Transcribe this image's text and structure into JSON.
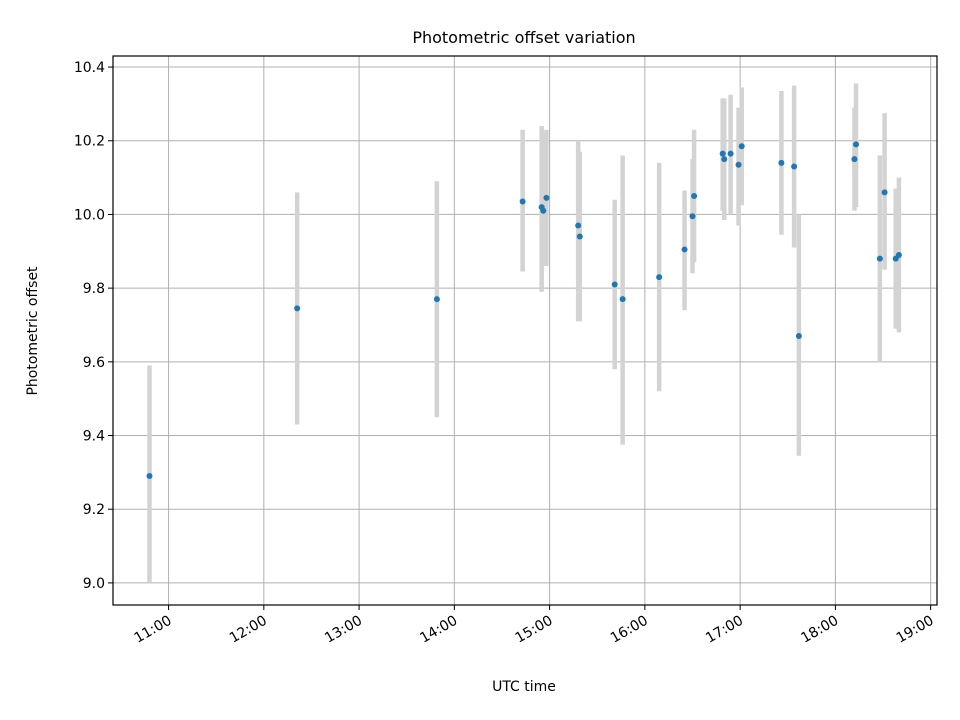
{
  "chart_data": {
    "type": "scatter",
    "title": "Photometric offset variation",
    "xlabel": "UTC time",
    "ylabel": "Photometric offset",
    "xlim": [
      "10:25",
      "19:04"
    ],
    "ylim": [
      8.94,
      10.43
    ],
    "grid": true,
    "x_ticks": [
      "11:00",
      "12:00",
      "13:00",
      "14:00",
      "15:00",
      "16:00",
      "17:00",
      "18:00",
      "19:00"
    ],
    "y_ticks": [
      "9.0",
      "9.2",
      "9.4",
      "9.6",
      "9.8",
      "10.0",
      "10.2",
      "10.4"
    ],
    "colors": {
      "points": "#1f77b4",
      "error_bars": "#d3d3d3",
      "grid": "#b0b0b0"
    },
    "points": [
      {
        "x": "10:48",
        "y": 9.29,
        "ylow": 9.0,
        "yhigh": 9.59
      },
      {
        "x": "12:21",
        "y": 9.745,
        "ylow": 9.43,
        "yhigh": 10.06
      },
      {
        "x": "13:49",
        "y": 9.77,
        "ylow": 9.45,
        "yhigh": 10.09
      },
      {
        "x": "14:43",
        "y": 10.035,
        "ylow": 9.845,
        "yhigh": 10.23
      },
      {
        "x": "14:55",
        "y": 10.02,
        "ylow": 9.79,
        "yhigh": 10.24
      },
      {
        "x": "14:56",
        "y": 10.01,
        "ylow": 9.86,
        "yhigh": 10.22
      },
      {
        "x": "14:58",
        "y": 10.045,
        "ylow": 9.86,
        "yhigh": 10.23
      },
      {
        "x": "15:18",
        "y": 9.97,
        "ylow": 9.71,
        "yhigh": 10.2
      },
      {
        "x": "15:19",
        "y": 9.94,
        "ylow": 9.71,
        "yhigh": 10.17
      },
      {
        "x": "15:41",
        "y": 9.81,
        "ylow": 9.58,
        "yhigh": 10.04
      },
      {
        "x": "15:46",
        "y": 9.77,
        "ylow": 9.375,
        "yhigh": 10.16
      },
      {
        "x": "16:09",
        "y": 9.83,
        "ylow": 9.52,
        "yhigh": 10.14
      },
      {
        "x": "16:25",
        "y": 9.905,
        "ylow": 9.74,
        "yhigh": 10.065
      },
      {
        "x": "16:30",
        "y": 9.995,
        "ylow": 9.84,
        "yhigh": 10.15
      },
      {
        "x": "16:31",
        "y": 10.05,
        "ylow": 9.87,
        "yhigh": 10.23
      },
      {
        "x": "16:49",
        "y": 10.165,
        "ylow": 10.01,
        "yhigh": 10.315
      },
      {
        "x": "16:50",
        "y": 10.15,
        "ylow": 9.985,
        "yhigh": 10.315
      },
      {
        "x": "16:54",
        "y": 10.165,
        "ylow": 10.0,
        "yhigh": 10.325
      },
      {
        "x": "16:59",
        "y": 10.135,
        "ylow": 9.97,
        "yhigh": 10.29
      },
      {
        "x": "17:01",
        "y": 10.185,
        "ylow": 10.025,
        "yhigh": 10.345
      },
      {
        "x": "17:26",
        "y": 10.14,
        "ylow": 9.945,
        "yhigh": 10.335
      },
      {
        "x": "17:34",
        "y": 10.13,
        "ylow": 9.91,
        "yhigh": 10.35
      },
      {
        "x": "17:37",
        "y": 9.67,
        "ylow": 9.345,
        "yhigh": 10.0
      },
      {
        "x": "18:12",
        "y": 10.15,
        "ylow": 10.01,
        "yhigh": 10.29
      },
      {
        "x": "18:13",
        "y": 10.19,
        "ylow": 10.02,
        "yhigh": 10.355
      },
      {
        "x": "18:28",
        "y": 9.88,
        "ylow": 9.6,
        "yhigh": 10.16
      },
      {
        "x": "18:31",
        "y": 10.06,
        "ylow": 9.85,
        "yhigh": 10.275
      },
      {
        "x": "18:38",
        "y": 9.88,
        "ylow": 9.69,
        "yhigh": 10.07
      },
      {
        "x": "18:40",
        "y": 9.89,
        "ylow": 9.68,
        "yhigh": 10.1
      }
    ]
  }
}
